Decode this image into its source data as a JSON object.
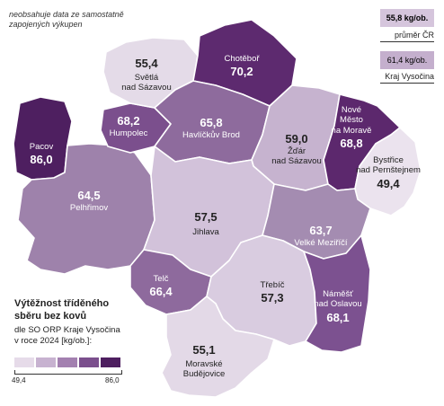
{
  "note": [
    "neobsahuje data ze samostatně",
    "zapojených výkupen"
  ],
  "reference": {
    "cr": {
      "value": "55,8 kg/ob.",
      "caption": "průměr ČR",
      "color": "#d5c5dc"
    },
    "kraj": {
      "value": "61,4 kg/ob.",
      "caption": "Kraj Vysočina",
      "color": "#c4afcd"
    }
  },
  "legend": {
    "title": [
      "Výtěžnost tříděného",
      "sběru bez kovů"
    ],
    "subtitle": [
      "dle SO ORP Kraje Vysočina",
      "v roce 2024 [kg/ob.]:"
    ],
    "min": "49,4",
    "max": "86,0",
    "colors": [
      "#e6dbe9",
      "#c7b2d0",
      "#a380b0",
      "#7b4f8d",
      "#4e1f60"
    ]
  },
  "regions": {
    "chotebor": {
      "name": "Chotěboř",
      "value": "70,2",
      "color": "#5d2a6f"
    },
    "svetla": {
      "name": "Světlá nad Sázavou",
      "value": "55,4",
      "color": "#e4dbe8"
    },
    "pacov": {
      "name": "Pacov",
      "value": "86,0",
      "color": "#4e1f60"
    },
    "humpolec": {
      "name": "Humpolec",
      "value": "68,2",
      "color": "#7b4f8d"
    },
    "havlickuv_brod": {
      "name": "Havlíčkův Brod",
      "value": "65,8",
      "color": "#8e6b9d"
    },
    "zdar": {
      "name": "Žďár nad Sázavou",
      "value": "59,0",
      "color": "#c6b3cf"
    },
    "nove_mesto": {
      "name": "Nové Město na Moravě",
      "value": "68,8",
      "color": "#5c286d"
    },
    "bystrice": {
      "name": "Bystřice nad Pernštejnem",
      "value": "49,4",
      "color": "#ebe3ee"
    },
    "pelhrimov": {
      "name": "Pelhřimov",
      "value": "64,5",
      "color": "#9e82ab"
    },
    "jihlava": {
      "name": "Jihlava",
      "value": "57,5",
      "color": "#d2c2da"
    },
    "velke_mezirici": {
      "name": "Velké Meziříčí",
      "value": "63,7",
      "color": "#a48cb1"
    },
    "telc": {
      "name": "Telč",
      "value": "66,4",
      "color": "#8e6a9d"
    },
    "trebic": {
      "name": "Třebíč",
      "value": "57,3",
      "color": "#d9cce0"
    },
    "namest": {
      "name": "Náměšť nad Oslavou",
      "value": "68,1",
      "color": "#7c5190"
    },
    "moravske_budejovice": {
      "name": "Moravské Budějovice",
      "value": "55,1",
      "color": "#e3d9e7"
    }
  }
}
